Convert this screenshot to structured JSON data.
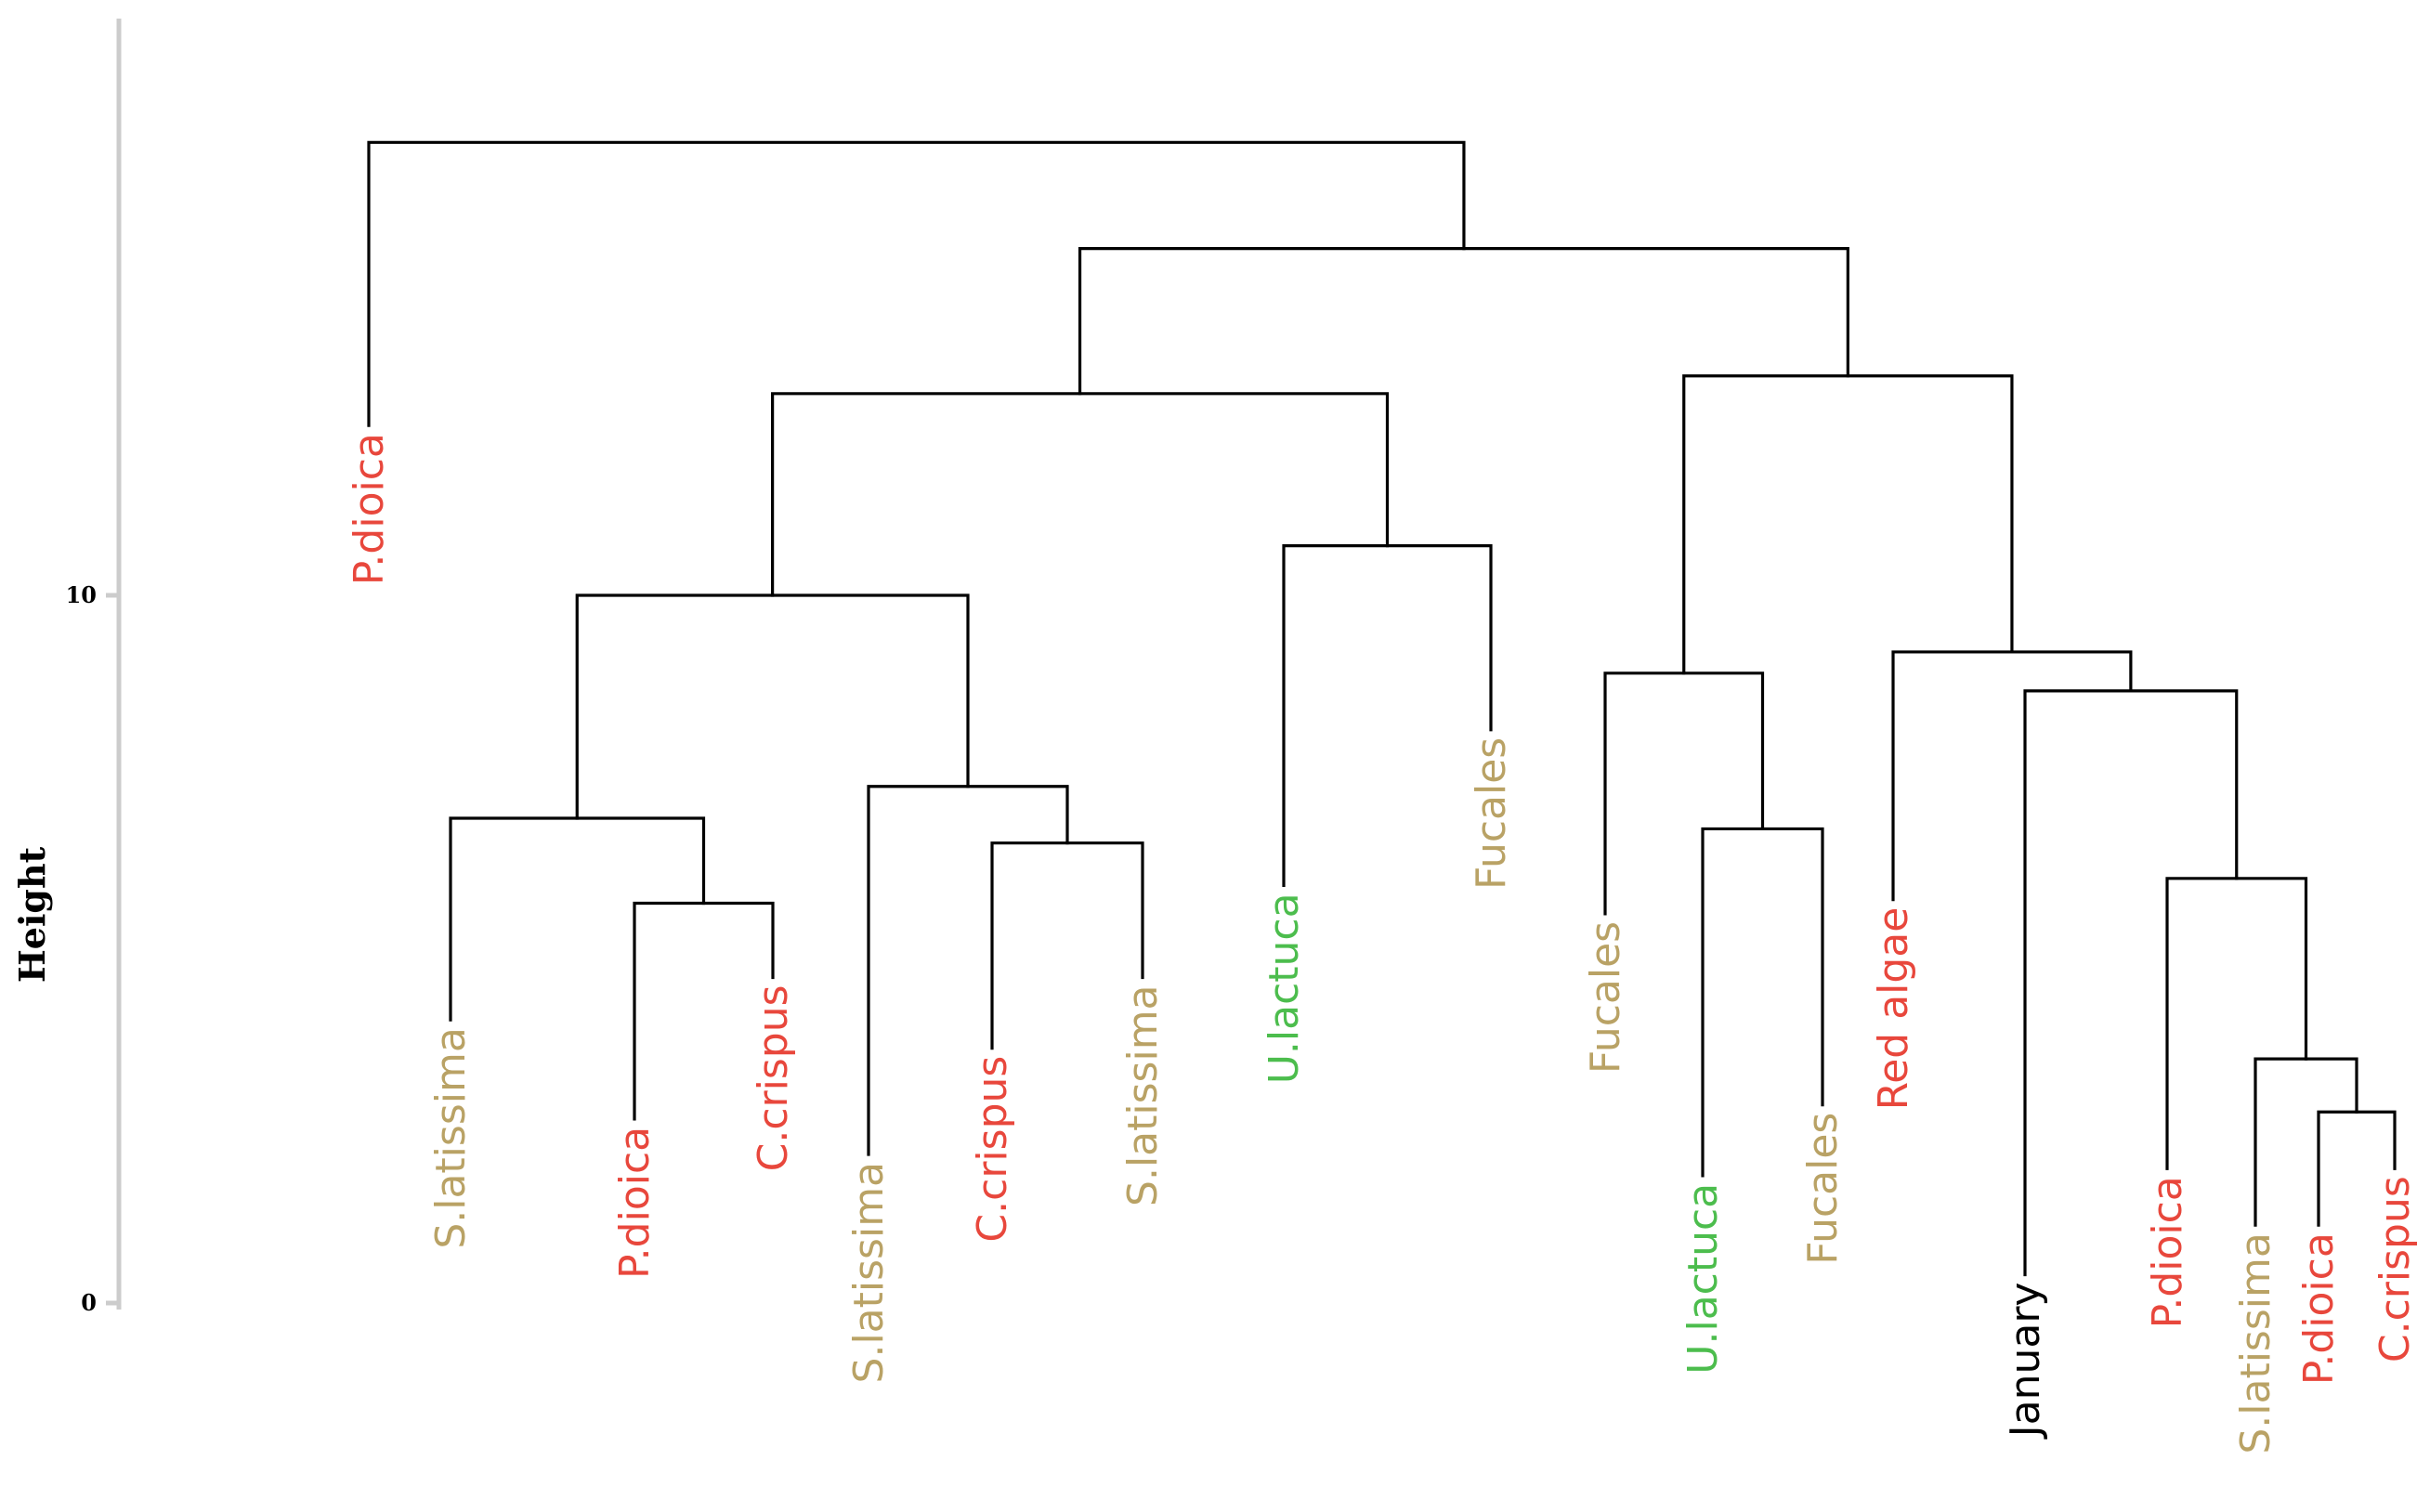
{
  "chart_data": {
    "type": "dendrogram",
    "ylabel": "Height",
    "ylim": [
      0,
      18.6
    ],
    "yticks": [
      0,
      10
    ],
    "grid": false,
    "leaves": [
      {
        "label": "P.dioica",
        "group": "red",
        "end_height": 12.4
      },
      {
        "label": "S.latissima",
        "group": "brown",
        "end_height": 4.0
      },
      {
        "label": "P.dioica",
        "group": "red",
        "end_height": 2.6
      },
      {
        "label": "C.crispus",
        "group": "red",
        "end_height": 4.6
      },
      {
        "label": "S.latissima",
        "group": "brown",
        "end_height": 2.1
      },
      {
        "label": "C.crispus",
        "group": "red",
        "end_height": 3.6
      },
      {
        "label": "S.latissima",
        "group": "brown",
        "end_height": 4.6
      },
      {
        "label": "U.lactuca",
        "group": "green",
        "end_height": 5.9
      },
      {
        "label": "Fucales",
        "group": "brown",
        "end_height": 8.1
      },
      {
        "label": "Fucales",
        "group": "brown",
        "end_height": 5.5
      },
      {
        "label": "U.lactuca",
        "group": "green",
        "end_height": 1.8
      },
      {
        "label": "Fucales",
        "group": "brown",
        "end_height": 2.8
      },
      {
        "label": "Red algae",
        "group": "red",
        "end_height": 5.7
      },
      {
        "label": "January",
        "group": "black",
        "end_height": 0.4
      },
      {
        "label": "P.dioica",
        "group": "red",
        "end_height": 1.9
      },
      {
        "label": "S.latissima",
        "group": "brown",
        "end_height": 1.1
      },
      {
        "label": "P.dioica",
        "group": "red",
        "end_height": 1.1
      },
      {
        "label": "C.crispus",
        "group": "red",
        "end_height": 1.9
      }
    ],
    "merges": [
      {
        "a": "L2",
        "b": "L3",
        "height": 5.65
      },
      {
        "a": "L1",
        "b": "M0",
        "height": 6.85
      },
      {
        "a": "L5",
        "b": "L6",
        "height": 6.5
      },
      {
        "a": "L4",
        "b": "M2",
        "height": 7.3
      },
      {
        "a": "M1",
        "b": "M3",
        "height": 10.0
      },
      {
        "a": "L7",
        "b": "L8",
        "height": 10.7
      },
      {
        "a": "M4",
        "b": "M5",
        "height": 12.85
      },
      {
        "a": "L10",
        "b": "L11",
        "height": 6.7
      },
      {
        "a": "L9",
        "b": "M7",
        "height": 8.9
      },
      {
        "a": "L16",
        "b": "L17",
        "height": 2.7
      },
      {
        "a": "L15",
        "b": "M9",
        "height": 3.45
      },
      {
        "a": "L14",
        "b": "M10",
        "height": 6.0
      },
      {
        "a": "L13",
        "b": "M11",
        "height": 8.65
      },
      {
        "a": "L12",
        "b": "M12",
        "height": 9.2
      },
      {
        "a": "M8",
        "b": "M13",
        "height": 13.1
      },
      {
        "a": "M6",
        "b": "M14",
        "height": 14.9
      },
      {
        "a": "L0",
        "b": "M15",
        "height": 16.4
      }
    ],
    "colors": {
      "red": "#e8473c",
      "brown": "#b9a265",
      "green": "#4cbd4d",
      "black": "#000000"
    }
  }
}
